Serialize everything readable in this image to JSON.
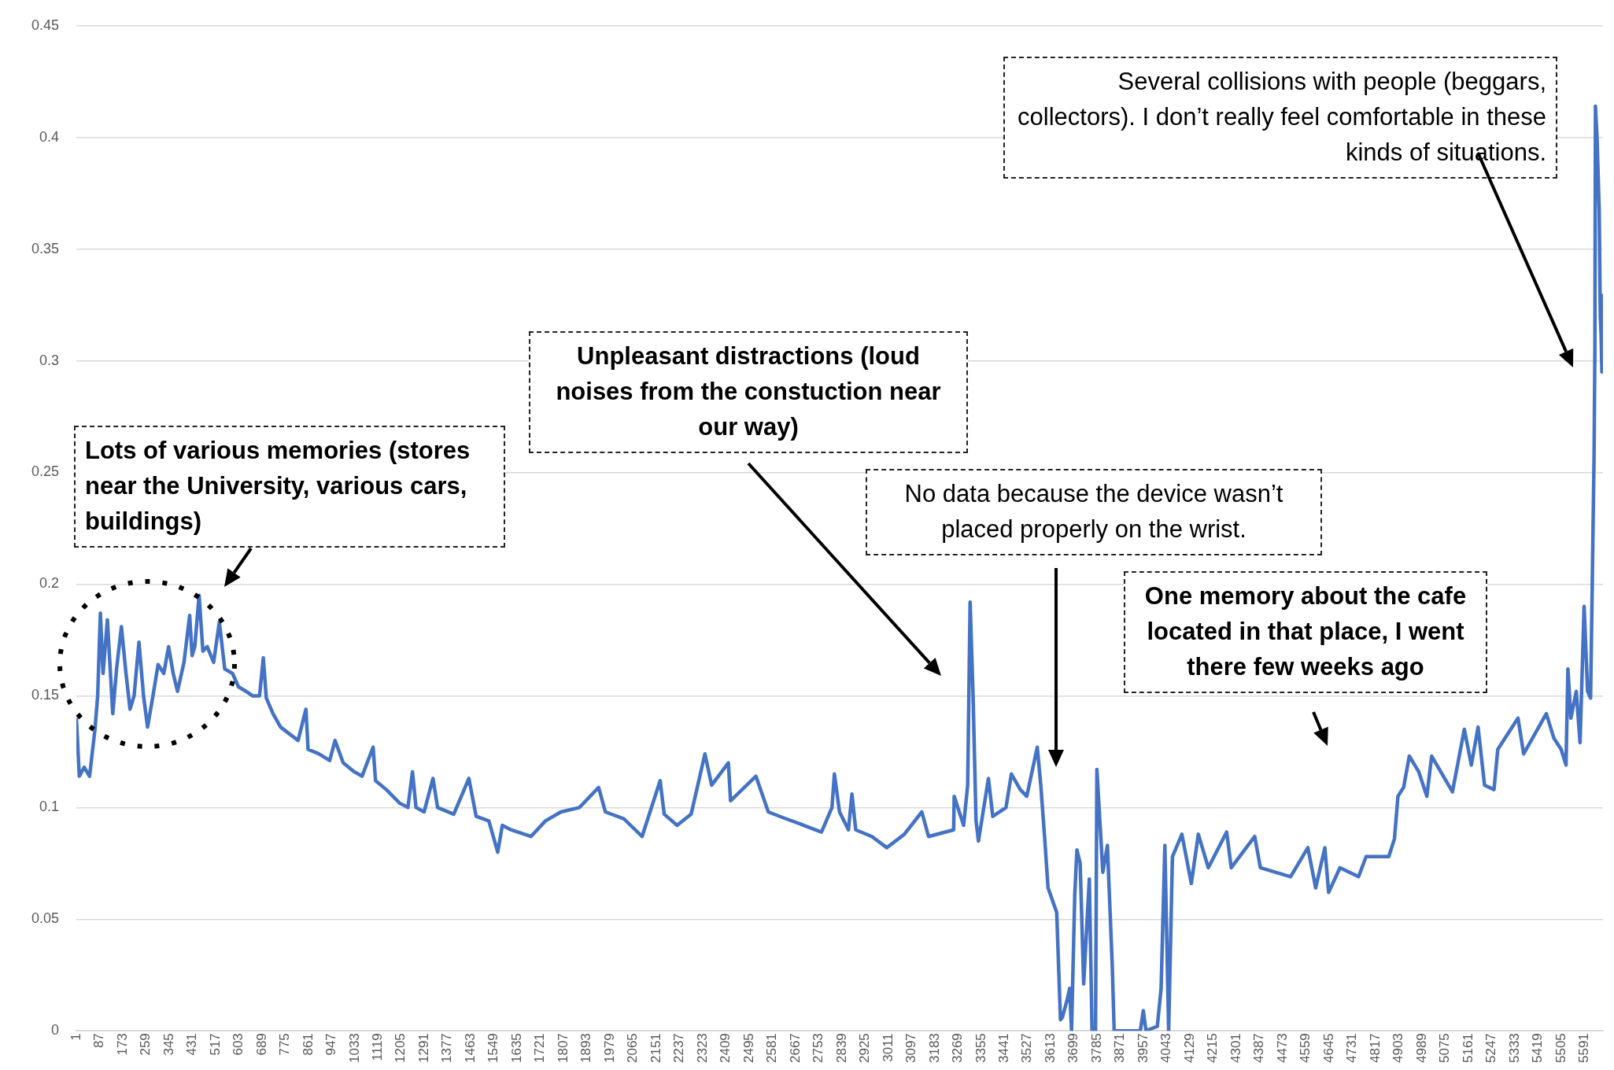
{
  "chart_data": {
    "type": "line",
    "color": "#4472c4",
    "grid": "y",
    "xlim": [
      1,
      5660
    ],
    "ylim": [
      0,
      0.45
    ],
    "yticks": [
      0,
      0.05,
      0.1,
      0.15,
      0.2,
      0.25,
      0.3,
      0.35,
      0.4,
      0.45
    ],
    "xticks": [
      1,
      87,
      173,
      259,
      345,
      431,
      517,
      603,
      689,
      775,
      861,
      947,
      1033,
      1119,
      1205,
      1291,
      1377,
      1463,
      1549,
      1635,
      1721,
      1807,
      1893,
      1979,
      2065,
      2151,
      2237,
      2323,
      2409,
      2495,
      2581,
      2667,
      2753,
      2839,
      2925,
      3011,
      3097,
      3183,
      3269,
      3355,
      3441,
      3527,
      3613,
      3699,
      3785,
      3871,
      3957,
      4043,
      4129,
      4215,
      4301,
      4387,
      4473,
      4559,
      4645,
      4731,
      4817,
      4903,
      4989,
      5075,
      5161,
      5247,
      5333,
      5419,
      5505,
      5591
    ],
    "x": [
      1,
      12,
      30,
      50,
      70,
      80,
      90,
      100,
      116,
      136,
      150,
      168,
      185,
      200,
      215,
      233,
      250,
      265,
      285,
      304,
      325,
      343,
      360,
      376,
      400,
      421,
      430,
      440,
      456,
      470,
      486,
      510,
      531,
      551,
      580,
      602,
      630,
      654,
      680,
      694,
      705,
      730,
      758,
      790,
      823,
      852,
      860,
      900,
      940,
      960,
      990,
      1031,
      1060,
      1101,
      1110,
      1150,
      1199,
      1230,
      1247,
      1260,
      1290,
      1323,
      1340,
      1400,
      1456,
      1483,
      1530,
      1563,
      1580,
      1612,
      1686,
      1740,
      1797,
      1866,
      1937,
      1962,
      2030,
      2098,
      2165,
      2180,
      2228,
      2280,
      2331,
      2356,
      2418,
      2426,
      2520,
      2566,
      2630,
      2698,
      2763,
      2802,
      2811,
      2830,
      2863,
      2876,
      2890,
      2950,
      3005,
      3070,
      3135,
      3160,
      3253,
      3255,
      3290,
      3305,
      3314,
      3325,
      3336,
      3345,
      3382,
      3398,
      3447,
      3467,
      3500,
      3524,
      3563,
      3576,
      3590,
      3603,
      3635,
      3649,
      3656,
      3674,
      3683,
      3690,
      3702,
      3710,
      3722,
      3735,
      3756,
      3766,
      3779,
      3784,
      3806,
      3823,
      3841,
      3848,
      3945,
      3956,
      3966,
      4008,
      4022,
      4036,
      4050,
      4064,
      4099,
      4134,
      4160,
      4197,
      4265,
      4282,
      4369,
      4390,
      4502,
      4566,
      4595,
      4629,
      4643,
      4685,
      4754,
      4782,
      4866,
      4887,
      4900,
      4921,
      4942,
      4977,
      5007,
      5025,
      5102,
      5146,
      5172,
      5197,
      5221,
      5256,
      5270,
      5345,
      5366,
      5450,
      5478,
      5505,
      5523,
      5530,
      5541,
      5561,
      5575,
      5590,
      5603,
      5614,
      5620,
      5627,
      5630,
      5632,
      5638,
      5646,
      5650,
      5653,
      5656,
      5658
    ],
    "values": [
      0.14,
      0.114,
      0.118,
      0.114,
      0.135,
      0.15,
      0.187,
      0.16,
      0.184,
      0.142,
      0.162,
      0.181,
      0.16,
      0.144,
      0.15,
      0.174,
      0.15,
      0.136,
      0.15,
      0.164,
      0.16,
      0.172,
      0.16,
      0.152,
      0.165,
      0.186,
      0.168,
      0.172,
      0.195,
      0.17,
      0.172,
      0.165,
      0.183,
      0.162,
      0.16,
      0.154,
      0.152,
      0.15,
      0.15,
      0.167,
      0.149,
      0.142,
      0.136,
      0.133,
      0.13,
      0.144,
      0.126,
      0.124,
      0.121,
      0.13,
      0.12,
      0.116,
      0.114,
      0.127,
      0.112,
      0.108,
      0.102,
      0.1,
      0.116,
      0.1,
      0.098,
      0.113,
      0.1,
      0.097,
      0.113,
      0.096,
      0.094,
      0.08,
      0.092,
      0.09,
      0.087,
      0.094,
      0.098,
      0.1,
      0.109,
      0.098,
      0.095,
      0.087,
      0.112,
      0.097,
      0.092,
      0.097,
      0.124,
      0.11,
      0.12,
      0.103,
      0.114,
      0.098,
      0.095,
      0.092,
      0.089,
      0.1,
      0.115,
      0.098,
      0.09,
      0.106,
      0.09,
      0.087,
      0.082,
      0.088,
      0.098,
      0.087,
      0.09,
      0.105,
      0.092,
      0.11,
      0.192,
      0.15,
      0.094,
      0.085,
      0.113,
      0.096,
      0.1,
      0.115,
      0.108,
      0.105,
      0.127,
      0.11,
      0.087,
      0.064,
      0.053,
      0.005,
      0.006,
      0.014,
      0.019,
      0,
      0.061,
      0.081,
      0.075,
      0.021,
      0.068,
      0,
      0,
      0.117,
      0.071,
      0.083,
      0.029,
      0,
      0,
      0.009,
      0,
      0.002,
      0.019,
      0.083,
      0,
      0.078,
      0.088,
      0.066,
      0.088,
      0.073,
      0.089,
      0.073,
      0.087,
      0.073,
      0.069,
      0.082,
      0.064,
      0.082,
      0.062,
      0.073,
      0.069,
      0.078,
      0.078,
      0.086,
      0.105,
      0.109,
      0.123,
      0.116,
      0.105,
      0.123,
      0.107,
      0.135,
      0.119,
      0.136,
      0.11,
      0.108,
      0.126,
      0.14,
      0.124,
      0.142,
      0.131,
      0.126,
      0.119,
      0.162,
      0.14,
      0.152,
      0.129,
      0.19,
      0.152,
      0.149,
      0.198,
      0.258,
      0.305,
      0.414,
      0.4,
      0.367,
      0.32,
      0.312,
      0.295,
      0.33
    ],
    "annotations": [
      "Lots of various memories (stores near the University, various cars, buildings)",
      "Unpleasant distractions (loud noises from the constuction near our way)",
      "No data because the device wasn’t placed properly on the wrist.",
      "One memory about the cafe located in that place, I went there few weeks ago",
      "Several collisions with people (beggars, collectors). I don’t really feel comfortable in these kinds of situations."
    ]
  }
}
